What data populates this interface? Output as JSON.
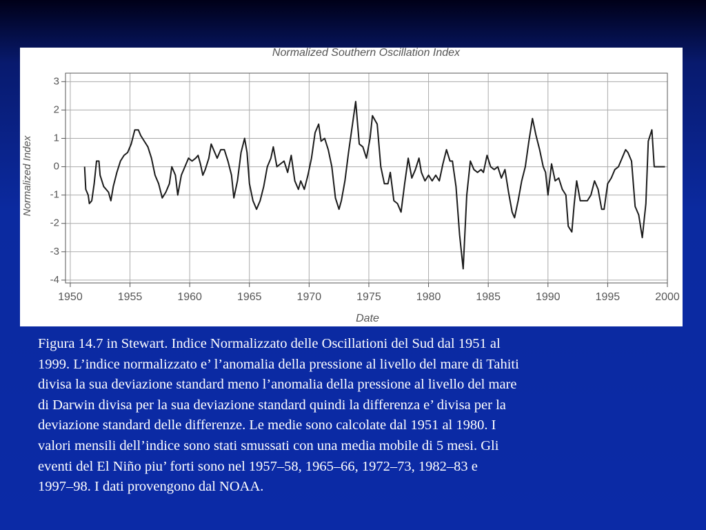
{
  "chart_data": {
    "type": "line",
    "title": "Normalized Southern Oscillation Index",
    "xlabel": "Date",
    "ylabel": "Normalized Index",
    "xlim": [
      1949.6,
      2000
    ],
    "ylim": [
      -4.1,
      3.3
    ],
    "xticks": [
      1950,
      1955,
      1960,
      1965,
      1970,
      1975,
      1980,
      1985,
      1990,
      1995,
      2000
    ],
    "yticks": [
      -4,
      -3,
      -2,
      -1,
      0,
      1,
      2,
      3
    ],
    "grid": true,
    "color": "#1a1a1a",
    "x": [
      1951.2,
      1951.3,
      1951.5,
      1951.6,
      1951.8,
      1952.0,
      1952.2,
      1952.4,
      1952.5,
      1952.8,
      1953.0,
      1953.2,
      1953.4,
      1953.6,
      1953.9,
      1954.2,
      1954.5,
      1954.8,
      1955.1,
      1955.4,
      1955.7,
      1955.9,
      1956.2,
      1956.5,
      1956.8,
      1957.1,
      1957.4,
      1957.7,
      1958.0,
      1958.3,
      1958.5,
      1958.8,
      1959.0,
      1959.3,
      1959.6,
      1959.9,
      1960.2,
      1960.5,
      1960.7,
      1960.9,
      1961.1,
      1961.3,
      1961.6,
      1961.8,
      1962.1,
      1962.3,
      1962.6,
      1962.9,
      1963.2,
      1963.5,
      1963.7,
      1964.0,
      1964.3,
      1964.6,
      1964.8,
      1965.0,
      1965.3,
      1965.6,
      1965.9,
      1966.2,
      1966.5,
      1966.8,
      1967.0,
      1967.3,
      1967.6,
      1967.9,
      1968.2,
      1968.5,
      1968.8,
      1969.1,
      1969.3,
      1969.6,
      1969.9,
      1970.2,
      1970.5,
      1970.8,
      1971.0,
      1971.3,
      1971.6,
      1971.9,
      1972.2,
      1972.5,
      1972.7,
      1973.0,
      1973.3,
      1973.6,
      1973.9,
      1974.2,
      1974.5,
      1974.8,
      1975.1,
      1975.3,
      1975.7,
      1976.0,
      1976.3,
      1976.6,
      1976.8,
      1977.1,
      1977.4,
      1977.7,
      1978.0,
      1978.3,
      1978.6,
      1978.9,
      1979.2,
      1979.4,
      1979.7,
      1980.0,
      1980.3,
      1980.6,
      1980.9,
      1981.2,
      1981.5,
      1981.8,
      1982.0,
      1982.3,
      1982.6,
      1982.9,
      1983.2,
      1983.5,
      1983.8,
      1984.1,
      1984.4,
      1984.6,
      1984.9,
      1985.2,
      1985.5,
      1985.8,
      1986.1,
      1986.4,
      1986.7,
      1987.0,
      1987.2,
      1987.5,
      1987.8,
      1988.1,
      1988.4,
      1988.7,
      1989.0,
      1989.3,
      1989.6,
      1989.8,
      1990.0,
      1990.3,
      1990.6,
      1990.9,
      1991.2,
      1991.5,
      1991.7,
      1992.0,
      1992.2,
      1992.4,
      1992.7,
      1993.0,
      1993.3,
      1993.6,
      1993.9,
      1994.2,
      1994.5,
      1994.7,
      1995.0,
      1995.3,
      1995.6,
      1995.9,
      1996.2,
      1996.5,
      1996.7,
      1997.0,
      1997.3,
      1997.6,
      1997.9,
      1998.2,
      1998.4,
      1998.7,
      1998.9,
      1999.2,
      1999.8
    ],
    "values": [
      0,
      -0.8,
      -1.0,
      -1.3,
      -1.2,
      -0.6,
      0.2,
      0.2,
      -0.3,
      -0.7,
      -0.8,
      -0.9,
      -1.2,
      -0.7,
      -0.2,
      0.2,
      0.4,
      0.5,
      0.8,
      1.3,
      1.3,
      1.1,
      0.9,
      0.7,
      0.3,
      -0.3,
      -0.6,
      -1.1,
      -0.9,
      -0.6,
      0.0,
      -0.3,
      -1.0,
      -0.3,
      0.0,
      0.3,
      0.2,
      0.3,
      0.4,
      0.1,
      -0.3,
      -0.1,
      0.3,
      0.8,
      0.5,
      0.3,
      0.6,
      0.6,
      0.2,
      -0.3,
      -1.1,
      -0.5,
      0.5,
      1.0,
      0.5,
      -0.6,
      -1.2,
      -1.5,
      -1.2,
      -0.7,
      0.0,
      0.3,
      0.7,
      0.0,
      0.1,
      0.2,
      -0.2,
      0.4,
      -0.5,
      -0.8,
      -0.5,
      -0.8,
      -0.3,
      0.3,
      1.2,
      1.5,
      0.9,
      1.0,
      0.6,
      0.0,
      -1.1,
      -1.5,
      -1.2,
      -0.5,
      0.5,
      1.4,
      2.3,
      0.8,
      0.7,
      0.3,
      1.0,
      1.8,
      1.5,
      0.0,
      -0.6,
      -0.6,
      -0.2,
      -1.2,
      -1.3,
      -1.6,
      -0.6,
      0.3,
      -0.4,
      -0.1,
      0.3,
      -0.2,
      -0.5,
      -0.3,
      -0.5,
      -0.3,
      -0.5,
      0.1,
      0.6,
      0.2,
      0.2,
      -0.7,
      -2.4,
      -3.6,
      -1.0,
      0.2,
      -0.1,
      -0.2,
      -0.1,
      -0.2,
      0.4,
      0.0,
      -0.1,
      0.0,
      -0.4,
      -0.1,
      -0.9,
      -1.6,
      -1.8,
      -1.2,
      -0.5,
      0.0,
      0.9,
      1.7,
      1.1,
      0.6,
      0.0,
      -0.2,
      -1.0,
      0.1,
      -0.5,
      -0.4,
      -0.8,
      -1.0,
      -2.1,
      -2.3,
      -1.3,
      -0.5,
      -1.2,
      -1.2,
      -1.2,
      -1.0,
      -0.5,
      -0.8,
      -1.5,
      -1.5,
      -0.6,
      -0.4,
      -0.1,
      0.0,
      0.3,
      0.6,
      0.5,
      0.2,
      -1.4,
      -1.7,
      -2.5,
      -1.3,
      0.9,
      1.3,
      0.0,
      0.0,
      0.0
    ]
  },
  "caption": [
    "Figura 14.7 in Stewart. Indice Normalizzato delle Oscillationi del Sud dal 1951 al",
    "1999. L’indice normalizzato e’ l’anomalia della pressione al livello del mare di Tahiti",
    "divisa la sua deviazione standard meno l’anomalia della pressione al livello del mare",
    "di Darwin divisa per la sua deviazione standard quindi la differenza e’ divisa per la",
    "deviazione standard delle differenze. Le medie sono calcolate dal 1951 al 1980. I",
    "valori mensili dell’indice sono stati smussati con una media mobile di 5 mesi. Gli",
    "eventi del El Niño piu’ forti sono nel 1957–58, 1965–66, 1972–73, 1982–83 e",
    "1997–98. I dati provengono dal NOAA."
  ]
}
